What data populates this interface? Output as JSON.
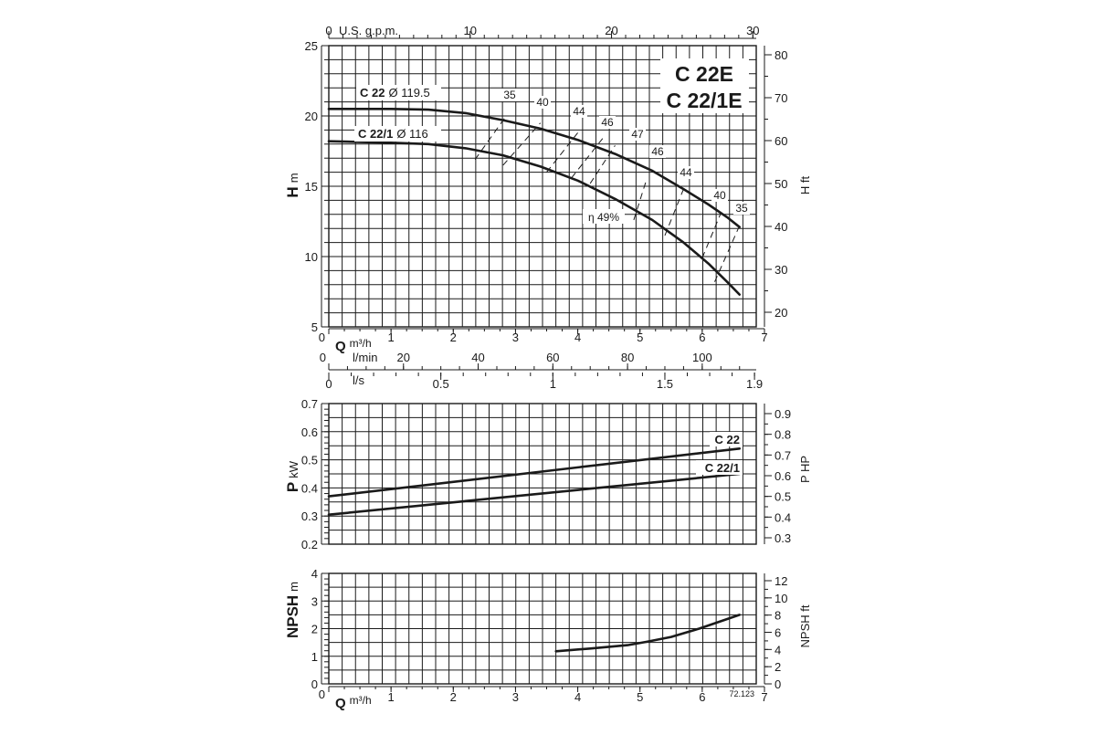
{
  "chart_data": [
    {
      "type": "line",
      "title": "C 22E / C 22/1E",
      "title_lines": [
        "C 22E",
        "C 22/1E"
      ],
      "ylabel_left_symbol": "H",
      "ylabel_left_unit": "m",
      "ylabel_right": "H ft",
      "xlabel_top_unit": "U.S. g.p.m.",
      "x_axis_unit": "m³/h",
      "ylim": [
        5,
        25
      ],
      "xlim": [
        0,
        7
      ],
      "y_ticks": [
        "5",
        "10",
        "15",
        "20",
        "25"
      ],
      "y_right_ticks": [
        "20",
        "30",
        "40",
        "50",
        "60",
        "70",
        "80"
      ],
      "x_top_ticks": [
        "0",
        "10",
        "20",
        "30"
      ],
      "x_ticks": [
        "0",
        "1",
        "2",
        "3",
        "4",
        "5",
        "6",
        "7"
      ],
      "grid": true,
      "series": [
        {
          "name": "C 22 Ø 119.5",
          "name_bold": "C 22",
          "name_rest": "Ø 119.5",
          "x": [
            0,
            1,
            1.6,
            2.2,
            2.8,
            3.4,
            4.0,
            4.6,
            5.2,
            5.7,
            6.1,
            6.4,
            6.6
          ],
          "y": [
            20.5,
            20.5,
            20.45,
            20.2,
            19.7,
            19.1,
            18.3,
            17.3,
            16.1,
            14.8,
            13.7,
            12.8,
            12.1
          ]
        },
        {
          "name": "C 22/1 Ø 116",
          "name_bold": "C 22/1",
          "name_rest": "Ø 116",
          "x": [
            0,
            1,
            1.6,
            2.2,
            2.8,
            3.4,
            4.0,
            4.6,
            5.2,
            5.7,
            6.1,
            6.4,
            6.6
          ],
          "y": [
            18.2,
            18.1,
            18.0,
            17.7,
            17.2,
            16.4,
            15.4,
            14.1,
            12.6,
            11.0,
            9.5,
            8.2,
            7.3
          ]
        }
      ],
      "efficiency_labels": [
        "35",
        "40",
        "44",
        "46",
        "47",
        "46",
        "44",
        "40",
        "35"
      ],
      "efficiency_max_label": "η 49%",
      "efficiency_lines": [
        {
          "x1": 2.35,
          "y1": 16.9,
          "x2": 2.85,
          "y2": 20.0
        },
        {
          "x1": 2.8,
          "y1": 16.5,
          "x2": 3.4,
          "y2": 19.5
        },
        {
          "x1": 3.5,
          "y1": 16.0,
          "x2": 4.0,
          "y2": 18.8
        },
        {
          "x1": 3.9,
          "y1": 15.6,
          "x2": 4.4,
          "y2": 18.4
        },
        {
          "x1": 4.2,
          "y1": 15.2,
          "x2": 4.6,
          "y2": 17.9
        },
        {
          "x1": 4.9,
          "y1": 12.6,
          "x2": 5.1,
          "y2": 15.4
        },
        {
          "x1": 5.4,
          "y1": 11.5,
          "x2": 5.7,
          "y2": 14.8
        },
        {
          "x1": 6.0,
          "y1": 9.9,
          "x2": 6.3,
          "y2": 13.1
        },
        {
          "x1": 6.2,
          "y1": 8.2,
          "x2": 6.6,
          "y2": 12.2
        }
      ]
    },
    {
      "type": "line",
      "ylabel_left_symbol": "P",
      "ylabel_left_unit": "kW",
      "ylabel_right": "P HP",
      "x_lmin_unit": "l/min",
      "x_ls_unit": "l/s",
      "ylim": [
        0.2,
        0.7
      ],
      "xlim": [
        0,
        7
      ],
      "y_ticks": [
        "0.2",
        "0.3",
        "0.4",
        "0.5",
        "0.6",
        "0.7"
      ],
      "y_right_ticks": [
        "0.3",
        "0.4",
        "0.5",
        "0.6",
        "0.7",
        "0.8",
        "0.9"
      ],
      "x_lmin_ticks": [
        "0",
        "20",
        "40",
        "60",
        "80",
        "100"
      ],
      "x_ls_ticks": [
        "0",
        "0.5",
        "1",
        "1.5",
        "1.9"
      ],
      "grid": true,
      "series": [
        {
          "name": "C 22",
          "x": [
            0,
            6.6
          ],
          "y": [
            0.37,
            0.54
          ]
        },
        {
          "name": "C 22/1",
          "x": [
            0,
            6.6
          ],
          "y": [
            0.305,
            0.45
          ]
        }
      ]
    },
    {
      "type": "line",
      "ylabel_left_symbol": "NPSH",
      "ylabel_left_unit": "m",
      "ylabel_right": "NPSH ft",
      "x_axis_symbol": "Q",
      "x_axis_unit": "m³/h",
      "ylim": [
        0,
        4
      ],
      "xlim": [
        0,
        7
      ],
      "y_ticks": [
        "0",
        "1",
        "2",
        "3",
        "4"
      ],
      "y_right_ticks": [
        "0",
        "2",
        "4",
        "6",
        "8",
        "10",
        "12"
      ],
      "x_ticks": [
        "0",
        "1",
        "2",
        "3",
        "4",
        "5",
        "6",
        "7"
      ],
      "grid": true,
      "series": [
        {
          "name": "",
          "x": [
            3.65,
            4.2,
            4.8,
            5.1,
            5.5,
            5.95,
            6.6
          ],
          "y": [
            1.18,
            1.28,
            1.4,
            1.52,
            1.7,
            2.0,
            2.5
          ]
        }
      ],
      "code": "72.123"
    }
  ]
}
